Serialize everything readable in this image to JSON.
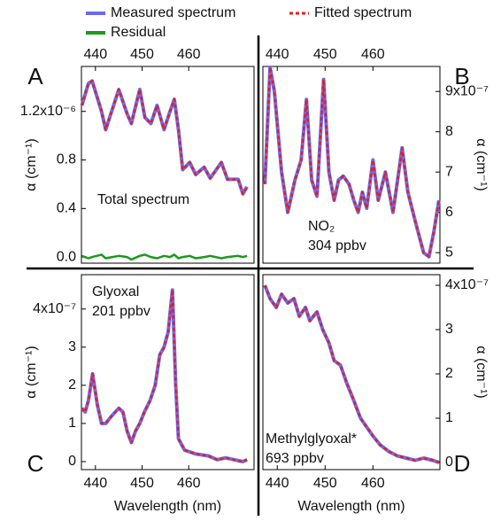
{
  "chart_data": [
    {
      "type": "line",
      "label": "A",
      "annotations": [
        "Total spectrum"
      ],
      "ylabel": "α (cm⁻¹)",
      "x_axis_side": "top",
      "y_axis_side": "left",
      "x": [
        437.1,
        438.5,
        439.3,
        441.3,
        442.2,
        445.0,
        446.8,
        447.7,
        449.5,
        450.6,
        451.9,
        453.2,
        454.7,
        456.0,
        456.9,
        457.8,
        458.7,
        460.2,
        461.5,
        463.3,
        464.6,
        467.0,
        468.3,
        470.6,
        471.6,
        472.5
      ],
      "series": [
        {
          "name": "Measured spectrum",
          "color": "#6b6bf0",
          "linestyle": "solid",
          "values": [
            1.25e-06,
            1.43e-06,
            1.45e-06,
            1.2e-06,
            1.05e-06,
            1.38e-06,
            1.18e-06,
            1.1e-06,
            1.38e-06,
            1.15e-06,
            1.1e-06,
            1.25e-06,
            1.05e-06,
            1.2e-06,
            1.3e-06,
            1.05e-06,
            7.2e-07,
            7.8e-07,
            6.8e-07,
            7.4e-07,
            6.5e-07,
            7.8e-07,
            6.4e-07,
            6.4e-07,
            5.2e-07,
            5.8e-07
          ]
        },
        {
          "name": "Fitted spectrum",
          "color": "#e02020",
          "linestyle": "dotted",
          "values": [
            1.25e-06,
            1.43e-06,
            1.45e-06,
            1.2e-06,
            1.05e-06,
            1.38e-06,
            1.18e-06,
            1.1e-06,
            1.38e-06,
            1.15e-06,
            1.1e-06,
            1.25e-06,
            1.05e-06,
            1.2e-06,
            1.3e-06,
            1.05e-06,
            7.2e-07,
            7.8e-07,
            6.8e-07,
            7.4e-07,
            6.5e-07,
            7.8e-07,
            6.4e-07,
            6.4e-07,
            5.2e-07,
            5.8e-07
          ]
        },
        {
          "name": "Residual",
          "color": "#1a9a1a",
          "linestyle": "solid",
          "values": [
            1e-08,
            -1e-08,
            0,
            2e-08,
            -1e-08,
            1e-08,
            0,
            -2e-08,
            1e-08,
            2e-08,
            0,
            -1e-08,
            1e-08,
            0,
            2e-08,
            -1e-08,
            0,
            1e-08,
            -1e-08,
            0,
            1e-08,
            -1e-08,
            0,
            1e-08,
            0,
            1e-08
          ]
        }
      ],
      "xlim": [
        437,
        474
      ],
      "xticks": [
        440,
        450,
        460
      ],
      "ylim": [
        -5e-08,
        1.57e-06
      ],
      "yticks": [
        {
          "value": 1.2e-06,
          "label": "1.2x10⁻⁶"
        },
        {
          "value": 8e-07,
          "label": "0.8"
        },
        {
          "value": 4e-07,
          "label": "0.4"
        },
        {
          "value": 0,
          "label": "0.0"
        }
      ]
    },
    {
      "type": "line",
      "label": "B",
      "annotations": [
        "NO₂",
        "304 ppbv"
      ],
      "ylabel": "α (cm⁻¹)",
      "x_axis_side": "top",
      "y_axis_side": "right",
      "x": [
        437.4,
        438.5,
        439.4,
        440.9,
        442.2,
        443.7,
        445.0,
        446.1,
        447.2,
        448.3,
        449.7,
        450.8,
        451.9,
        452.8,
        453.8,
        455.0,
        456.0,
        456.9,
        457.8,
        458.7,
        460.0,
        461.1,
        462.6,
        464.2,
        466.1,
        467.3,
        468.8,
        470.6,
        471.7,
        472.7,
        473.8
      ],
      "series": [
        {
          "color": "#6b6bf0",
          "linestyle": "solid",
          "values": [
            6.7e-07,
            9.6e-07,
            9e-07,
            7e-07,
            6e-07,
            6.8e-07,
            7.3e-07,
            8.8e-07,
            6.8e-07,
            6.4e-07,
            9.3e-07,
            7e-07,
            6.3e-07,
            6.8e-07,
            6.9e-07,
            6.7e-07,
            6.3e-07,
            6e-07,
            6.5e-07,
            6.1e-07,
            7.3e-07,
            6.3e-07,
            7e-07,
            6e-07,
            7.6e-07,
            6.5e-07,
            5.8e-07,
            5e-07,
            4.9e-07,
            5.5e-07,
            6.3e-07
          ]
        },
        {
          "color": "#e02020",
          "linestyle": "dotted",
          "values": [
            6.7e-07,
            9.6e-07,
            9e-07,
            7e-07,
            6e-07,
            6.8e-07,
            7.3e-07,
            8.8e-07,
            6.8e-07,
            6.4e-07,
            9.3e-07,
            7e-07,
            6.3e-07,
            6.8e-07,
            6.9e-07,
            6.7e-07,
            6.3e-07,
            6e-07,
            6.5e-07,
            6.1e-07,
            7.3e-07,
            6.3e-07,
            7e-07,
            6e-07,
            7.6e-07,
            6.5e-07,
            5.8e-07,
            5e-07,
            4.9e-07,
            5.5e-07,
            6.3e-07
          ]
        }
      ],
      "xlim": [
        437,
        474
      ],
      "xticks": [
        440,
        450,
        460
      ],
      "ylim": [
        4.74e-07,
        9.62e-07
      ],
      "yticks": [
        {
          "value": 9e-07,
          "label": "9x10⁻⁷"
        },
        {
          "value": 8e-07,
          "label": "8"
        },
        {
          "value": 7e-07,
          "label": "7"
        },
        {
          "value": 6e-07,
          "label": "6"
        },
        {
          "value": 5e-07,
          "label": "5"
        }
      ]
    },
    {
      "type": "line",
      "label": "C",
      "annotations": [
        "Glyoxal",
        "201 ppbv"
      ],
      "ylabel": "α (cm⁻¹)",
      "xlabel": "Wavelength (nm)",
      "x_axis_side": "bottom",
      "y_axis_side": "left",
      "x": [
        437.1,
        437.8,
        438.5,
        439.4,
        440.4,
        441.3,
        442.2,
        443.5,
        445.0,
        445.9,
        446.8,
        447.7,
        448.6,
        449.5,
        450.5,
        451.7,
        452.8,
        453.8,
        454.7,
        455.6,
        456.5,
        457.2,
        457.8,
        459.1,
        461.5,
        464.2,
        466.1,
        467.9,
        469.7,
        471.6,
        472.5
      ],
      "series": [
        {
          "color": "#6b6bf0",
          "linestyle": "solid",
          "values": [
            1.4e-07,
            1.3e-07,
            1.6e-07,
            2.3e-07,
            1.5e-07,
            1e-07,
            1e-07,
            1.2e-07,
            1.4e-07,
            1.3e-07,
            8e-08,
            5e-08,
            8e-08,
            1e-07,
            1.3e-07,
            1.6e-07,
            2e-07,
            2.8e-07,
            3e-07,
            3.4e-07,
            4.5e-07,
            2e-07,
            6e-08,
            3e-08,
            2e-08,
            1.5e-08,
            5e-09,
            1e-08,
            5e-09,
            0,
            5e-09
          ]
        },
        {
          "color": "#e02020",
          "linestyle": "dotted",
          "values": [
            1.4e-07,
            1.3e-07,
            1.6e-07,
            2.3e-07,
            1.5e-07,
            1e-07,
            1e-07,
            1.2e-07,
            1.4e-07,
            1.3e-07,
            8e-08,
            5e-08,
            8e-08,
            1e-07,
            1.3e-07,
            1.6e-07,
            2e-07,
            2.8e-07,
            3e-07,
            3.4e-07,
            4.5e-07,
            2e-07,
            6e-08,
            3e-08,
            2e-08,
            1.5e-08,
            5e-09,
            1e-08,
            5e-09,
            0,
            5e-09
          ]
        }
      ],
      "xlim": [
        437,
        474
      ],
      "xticks": [
        440,
        450,
        460
      ],
      "ylim": [
        -2.1e-08,
        4.9e-07
      ],
      "yticks": [
        {
          "value": 4e-07,
          "label": "4x10⁻⁷"
        },
        {
          "value": 3e-07,
          "label": "3"
        },
        {
          "value": 2e-07,
          "label": "2"
        },
        {
          "value": 1e-07,
          "label": "1"
        },
        0
      ]
    },
    {
      "type": "line",
      "label": "D",
      "annotations": [
        "Methylglyoxal*",
        "693 ppbv"
      ],
      "ylabel": "α (cm⁻¹)",
      "xlabel": "Wavelength (nm)",
      "x_axis_side": "bottom",
      "y_axis_side": "right",
      "x": [
        437.4,
        438.5,
        439.8,
        440.9,
        442.2,
        443.5,
        444.6,
        445.9,
        446.8,
        448.3,
        449.5,
        450.8,
        451.9,
        453.2,
        454.5,
        456.0,
        457.4,
        458.7,
        460.0,
        461.5,
        463.3,
        465.1,
        467.0,
        468.8,
        470.6,
        472.5,
        473.8
      ],
      "series": [
        {
          "color": "#6b6bf0",
          "linestyle": "solid",
          "values": [
            4e-07,
            3.7e-07,
            3.5e-07,
            3.8e-07,
            3.6e-07,
            3.7e-07,
            3.3e-07,
            3.5e-07,
            3.2e-07,
            3.4e-07,
            3e-07,
            2.7e-07,
            2.3e-07,
            2.2e-07,
            1.8e-07,
            1.4e-07,
            1e-07,
            8e-08,
            6e-08,
            4e-08,
            2.5e-08,
            1.5e-08,
            1e-08,
            5e-09,
            1e-08,
            5e-09,
            0
          ]
        },
        {
          "color": "#e02020",
          "linestyle": "dotted",
          "values": [
            4e-07,
            3.7e-07,
            3.5e-07,
            3.8e-07,
            3.6e-07,
            3.7e-07,
            3.3e-07,
            3.5e-07,
            3.2e-07,
            3.4e-07,
            3e-07,
            2.7e-07,
            2.3e-07,
            2.2e-07,
            1.8e-07,
            1.4e-07,
            1e-07,
            8e-08,
            6e-08,
            4e-08,
            2.5e-08,
            1.5e-08,
            1e-08,
            5e-09,
            1e-08,
            5e-09,
            0
          ]
        }
      ],
      "xlim": [
        437,
        474
      ],
      "xticks": [
        440,
        450,
        460
      ],
      "ylim": [
        -1.6e-08,
        4.24e-07
      ],
      "yticks": [
        {
          "value": 4e-07,
          "label": "4x10⁻⁷"
        },
        {
          "value": 3e-07,
          "label": "3"
        },
        {
          "value": 2e-07,
          "label": "2"
        },
        {
          "value": 1e-07,
          "label": "1"
        },
        0
      ]
    }
  ]
}
